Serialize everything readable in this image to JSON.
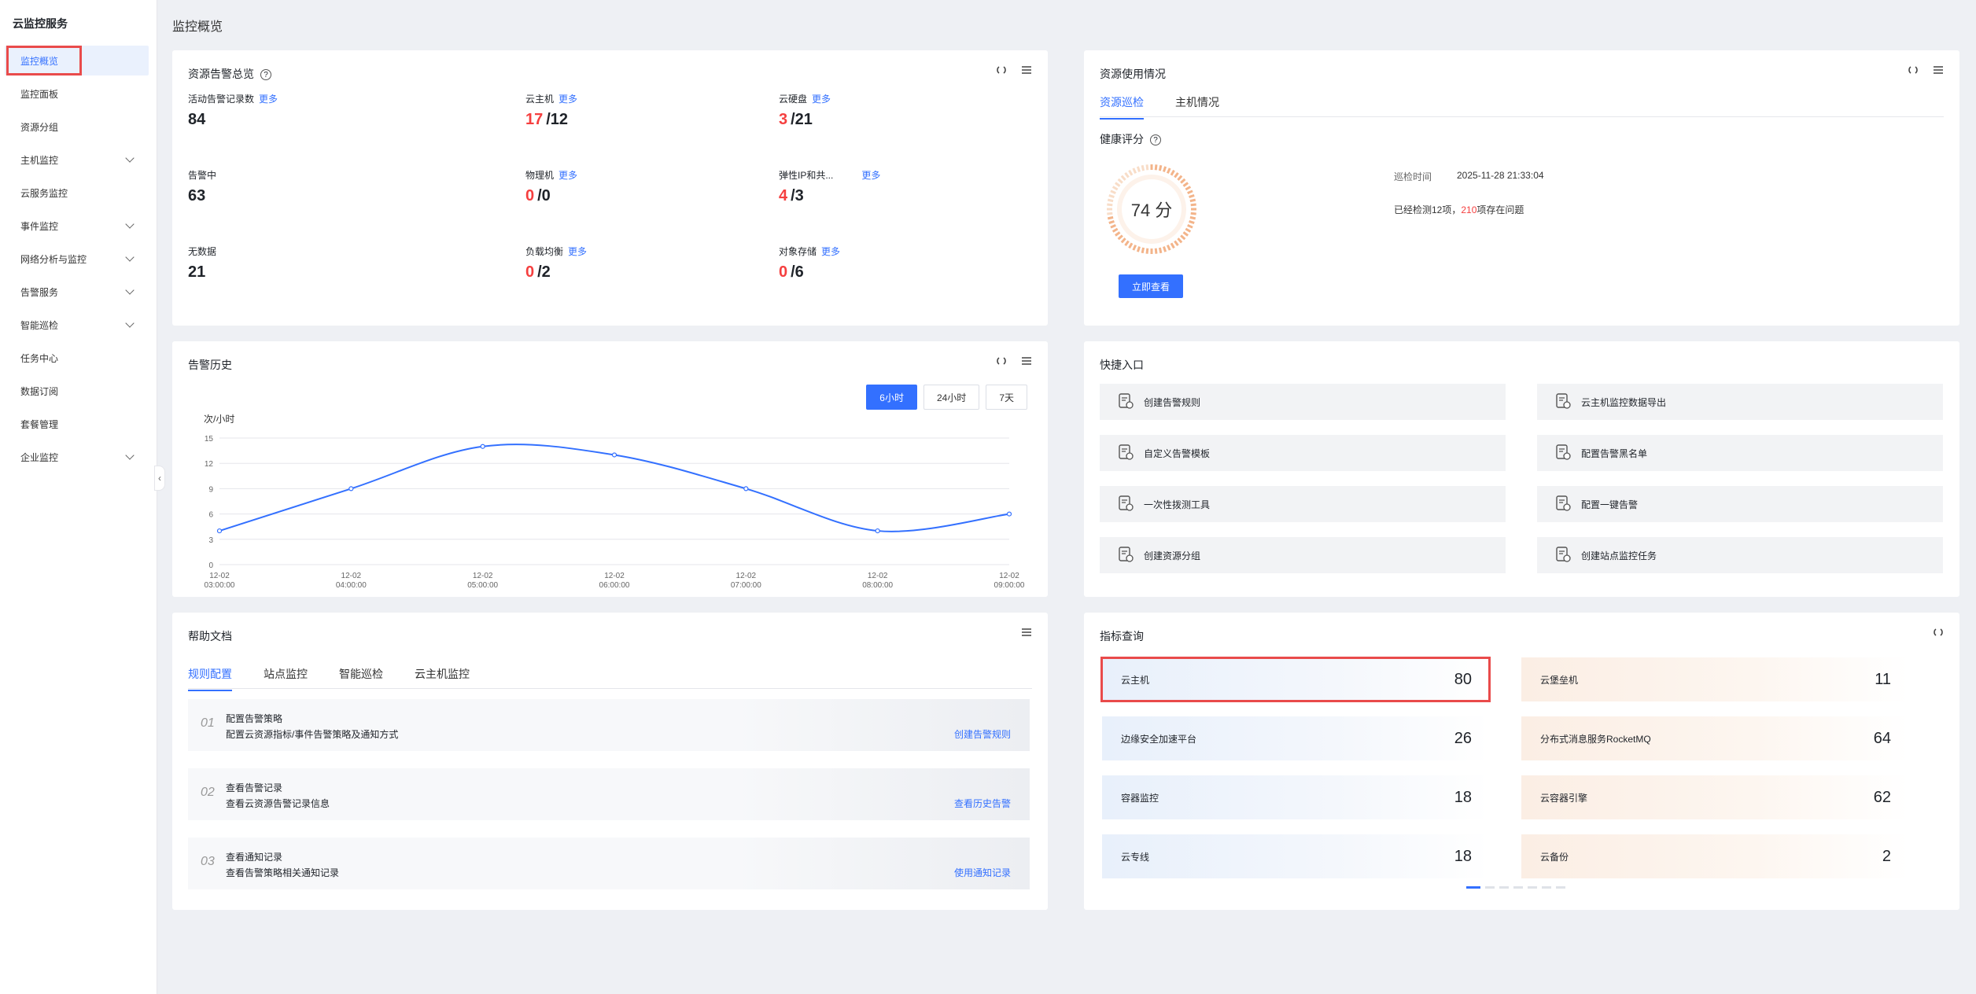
{
  "sidebar": {
    "title": "云监控服务",
    "items": [
      {
        "label": "监控概览",
        "active": true,
        "expandable": false
      },
      {
        "label": "监控面板",
        "expandable": false
      },
      {
        "label": "资源分组",
        "expandable": false
      },
      {
        "label": "主机监控",
        "expandable": true
      },
      {
        "label": "云服务监控",
        "expandable": false
      },
      {
        "label": "事件监控",
        "expandable": true
      },
      {
        "label": "网络分析与监控",
        "expandable": true
      },
      {
        "label": "告警服务",
        "expandable": true
      },
      {
        "label": "智能巡检",
        "expandable": true
      },
      {
        "label": "任务中心",
        "expandable": false
      },
      {
        "label": "数据订阅",
        "expandable": false
      },
      {
        "label": "套餐管理",
        "expandable": false
      },
      {
        "label": "企业监控",
        "expandable": true
      }
    ],
    "collapse_glyph": "‹"
  },
  "page": {
    "title": "监控概览"
  },
  "alarm_overview": {
    "title": "资源告警总览",
    "more": "更多",
    "stats": [
      {
        "label": "活动告警记录数",
        "has_more": true,
        "value": "84"
      },
      {
        "label": "告警中",
        "has_more": false,
        "value": "63"
      },
      {
        "label": "无数据",
        "has_more": false,
        "value": "21"
      },
      {
        "label": "云主机",
        "has_more": true,
        "alarm": "17",
        "total": "/12"
      },
      {
        "label": "物理机",
        "has_more": true,
        "alarm": "0",
        "total": "/0"
      },
      {
        "label": "负载均衡",
        "has_more": true,
        "alarm": "0",
        "total": "/2"
      },
      {
        "label": "云硬盘",
        "has_more": true,
        "alarm": "3",
        "total": "/21"
      },
      {
        "label": "弹性IP和共...",
        "has_more": true,
        "alarm": "4",
        "total": "/3"
      },
      {
        "label": "对象存储",
        "has_more": true,
        "alarm": "0",
        "total": "/6"
      }
    ]
  },
  "resource_usage": {
    "title": "资源使用情况",
    "tabs": [
      "资源巡检",
      "主机情况"
    ],
    "health_label": "健康评分",
    "score_text": "74 分",
    "score": 74,
    "view_button": "立即查看",
    "inspect_time_label": "巡检时间",
    "inspect_time": "2025-11-28 21:33:04",
    "checked_prefix": "已经检测12项，",
    "checked_issues": "210",
    "checked_suffix": "项存在问题"
  },
  "alarm_history": {
    "title": "告警历史",
    "time_buttons": [
      "6小时",
      "24小时",
      "7天"
    ],
    "active_time": "6小时"
  },
  "chart_data": {
    "type": "line",
    "ylabel": "次/小时",
    "ylim": [
      0,
      15
    ],
    "yticks": [
      "0",
      "3",
      "6",
      "9",
      "12",
      "15"
    ],
    "x": [
      "12-02 03:00:00",
      "12-02 04:00:00",
      "12-02 05:00:00",
      "12-02 06:00:00",
      "12-02 07:00:00",
      "12-02 08:00:00",
      "12-02 09:00:00"
    ],
    "x_date": [
      "12-02",
      "12-02",
      "12-02",
      "12-02",
      "12-02",
      "12-02",
      "12-02"
    ],
    "x_time": [
      "03:00:00",
      "04:00:00",
      "05:00:00",
      "06:00:00",
      "07:00:00",
      "08:00:00",
      "09:00:00"
    ],
    "series": [
      {
        "values": [
          4,
          9,
          14,
          13,
          9,
          4,
          6
        ],
        "color": "#3370ff"
      }
    ],
    "grid": true
  },
  "quick_entry": {
    "title": "快捷入口",
    "items": [
      {
        "label": "创建告警规则",
        "icon": "rule-doc-icon"
      },
      {
        "label": "云主机监控数据导出",
        "icon": "cloud-export-icon"
      },
      {
        "label": "自定义告警模板",
        "icon": "template-icon"
      },
      {
        "label": "配置告警黑名单",
        "icon": "blacklist-icon"
      },
      {
        "label": "一次性拨测工具",
        "icon": "eye-monitor-icon"
      },
      {
        "label": "配置一键告警",
        "icon": "alarm-bell-icon"
      },
      {
        "label": "创建资源分组",
        "icon": "group-icon"
      },
      {
        "label": "创建站点监控任务",
        "icon": "site-home-icon"
      }
    ]
  },
  "help_docs": {
    "title": "帮助文档",
    "tabs": [
      "规则配置",
      "站点监控",
      "智能巡检",
      "云主机监控"
    ],
    "rows": [
      {
        "num": "01",
        "title": "配置告警策略",
        "desc": "配置云资源指标/事件告警策略及通知方式",
        "link": "创建告警规则"
      },
      {
        "num": "02",
        "title": "查看告警记录",
        "desc": "查看云资源告警记录信息",
        "link": "查看历史告警"
      },
      {
        "num": "03",
        "title": "查看通知记录",
        "desc": "查看告警策略相关通知记录",
        "link": "使用通知记录"
      }
    ]
  },
  "metrics_query": {
    "title": "指标查询",
    "left": [
      {
        "name": "云主机",
        "value": "80"
      },
      {
        "name": "边缘安全加速平台",
        "value": "26"
      },
      {
        "name": "容器监控",
        "value": "18"
      },
      {
        "name": "云专线",
        "value": "18"
      }
    ],
    "right": [
      {
        "name": "云堡垒机",
        "value": "11"
      },
      {
        "name": "分布式消息服务RocketMQ",
        "value": "64"
      },
      {
        "name": "云容器引擎",
        "value": "62"
      },
      {
        "name": "云备份",
        "value": "2"
      }
    ],
    "pages": 7,
    "current_page": 1
  },
  "colors": {
    "accent": "#3370ff",
    "alarm_red": "#f53f3f",
    "highlight_box": "#e94b4b"
  }
}
